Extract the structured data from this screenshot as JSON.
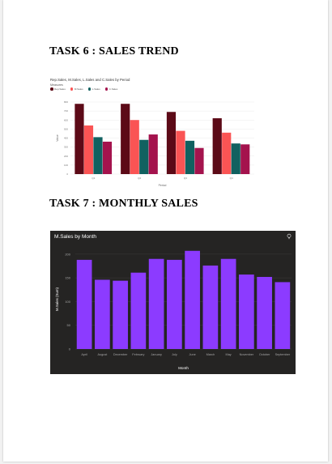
{
  "headings": {
    "task6": "TASK 6 : SALES TREND",
    "task7": "TASK 7 : MONTHLY SALES"
  },
  "chart_data": [
    {
      "type": "bar",
      "title": "Rep.Sales, M.Sales, L.Sales and C.Sales by Period",
      "legend_title": "Measures",
      "xlabel": "Period",
      "ylabel": "Value",
      "categories": [
        "Q1",
        "Q2",
        "Q3",
        "Q4"
      ],
      "series": [
        {
          "name": "Rep.Sales",
          "color": "#5c0a17",
          "values": [
            780,
            780,
            690,
            620
          ]
        },
        {
          "name": "M.Sales",
          "color": "#fa5454",
          "values": [
            540,
            600,
            480,
            460
          ]
        },
        {
          "name": "L.Sales",
          "color": "#116160",
          "values": [
            410,
            380,
            370,
            340
          ]
        },
        {
          "name": "C.Sales",
          "color": "#a4134d",
          "values": [
            360,
            440,
            290,
            330
          ]
        }
      ],
      "yticks": [
        0,
        100,
        200,
        300,
        400,
        500,
        600,
        700,
        800
      ],
      "ylim": [
        0,
        800
      ],
      "legend_position": "top-left",
      "grid": true
    },
    {
      "type": "bar",
      "title": "M.Sales by Month",
      "xlabel": "Month",
      "ylabel": "M.Sales (Sum)",
      "bar_color": "#8c3bff",
      "background": "#252423",
      "categories": [
        "April",
        "August",
        "December",
        "February",
        "January",
        "July",
        "June",
        "March",
        "May",
        "November",
        "October",
        "September"
      ],
      "values": [
        188,
        146,
        144,
        161,
        190,
        188,
        207,
        176,
        190,
        157,
        152,
        141
      ],
      "yticks": [
        0,
        50,
        100,
        150,
        200
      ],
      "ylim": [
        0,
        210
      ],
      "grid": true
    }
  ]
}
